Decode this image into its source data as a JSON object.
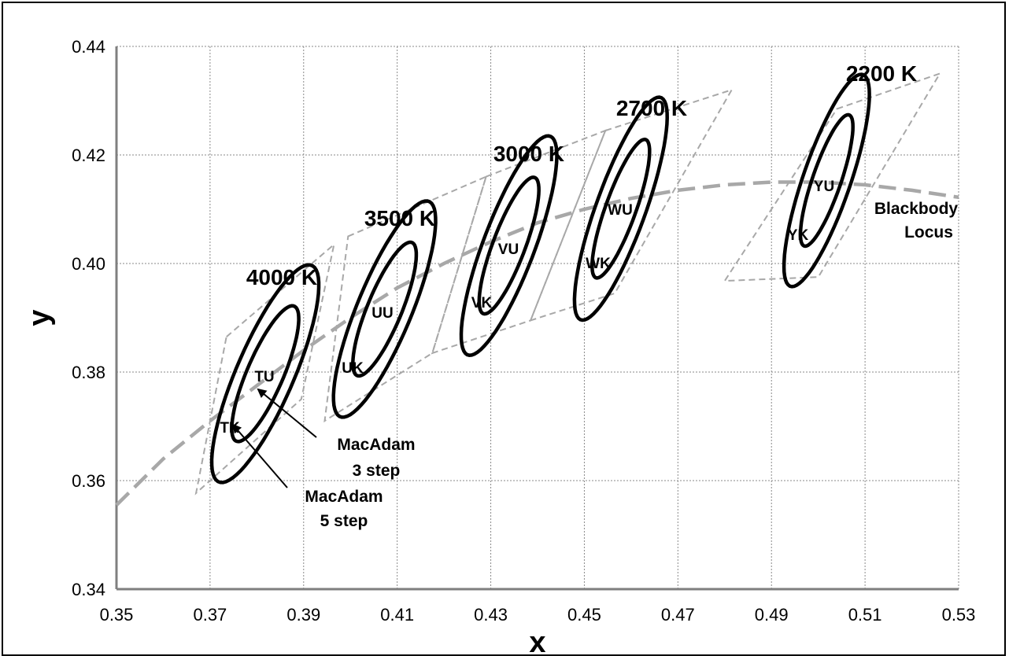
{
  "chart_data": {
    "type": "scatter",
    "title": "",
    "xlabel": "x",
    "ylabel": "y",
    "xlim": [
      0.35,
      0.53
    ],
    "ylim": [
      0.34,
      0.44
    ],
    "x_ticks": [
      "0.35",
      "0.37",
      "0.39",
      "0.41",
      "0.43",
      "0.45",
      "0.47",
      "0.49",
      "0.51",
      "0.53"
    ],
    "y_ticks": [
      "0.34",
      "0.36",
      "0.38",
      "0.40",
      "0.42",
      "0.44"
    ],
    "grid": true,
    "blackbody_locus": {
      "label": "Blackbody Locus",
      "label_lines": [
        "Blackbody",
        "Locus"
      ],
      "points": [
        [
          0.35,
          0.3555
        ],
        [
          0.36,
          0.364
        ],
        [
          0.37,
          0.371
        ],
        [
          0.38,
          0.3775
        ],
        [
          0.39,
          0.384
        ],
        [
          0.4,
          0.39
        ],
        [
          0.41,
          0.3955
        ],
        [
          0.42,
          0.4
        ],
        [
          0.43,
          0.404
        ],
        [
          0.44,
          0.4075
        ],
        [
          0.45,
          0.41
        ],
        [
          0.46,
          0.412
        ],
        [
          0.47,
          0.4135
        ],
        [
          0.48,
          0.4145
        ],
        [
          0.49,
          0.415
        ],
        [
          0.5,
          0.415
        ],
        [
          0.51,
          0.4145
        ],
        [
          0.52,
          0.4135
        ],
        [
          0.53,
          0.4122
        ]
      ]
    },
    "cct_groups": [
      {
        "label": "4000 K",
        "center": [
          0.3818,
          0.3797
        ],
        "inner": {
          "label": "TU",
          "a": 0.0139,
          "b": 0.0038,
          "angle_deg": 63
        },
        "outer": {
          "label": "TK",
          "a": 0.0223,
          "b": 0.006,
          "angle_deg": 63
        },
        "quad": [
          [
            0.3735,
            0.3865
          ],
          [
            0.3965,
            0.4035
          ],
          [
            0.3895,
            0.375
          ],
          [
            0.367,
            0.3577
          ]
        ]
      },
      {
        "label": "3500 K",
        "center": [
          0.4073,
          0.3916
        ],
        "inner": {
          "label": "UU",
          "a": 0.0136,
          "b": 0.0036,
          "angle_deg": 64
        },
        "outer": {
          "label": "UK",
          "a": 0.022,
          "b": 0.0057,
          "angle_deg": 64
        },
        "quad": [
          [
            0.3995,
            0.405
          ],
          [
            0.429,
            0.416
          ],
          [
            0.4175,
            0.3835
          ],
          [
            0.3945,
            0.371
          ]
        ]
      },
      {
        "label": "3000 K",
        "center": [
          0.4339,
          0.4033
        ],
        "inner": {
          "label": "VU",
          "a": 0.0137,
          "b": 0.0034,
          "angle_deg": 66
        },
        "outer": {
          "label": "VK",
          "a": 0.022,
          "b": 0.0054,
          "angle_deg": 66
        },
        "quad": [
          [
            0.429,
            0.416
          ],
          [
            0.4545,
            0.4245
          ],
          [
            0.4385,
            0.3895
          ],
          [
            0.4175,
            0.3835
          ]
        ]
      },
      {
        "label": "2700 K",
        "center": [
          0.4578,
          0.4101
        ],
        "inner": {
          "label": "WU",
          "a": 0.0138,
          "b": 0.0032,
          "angle_deg": 67
        },
        "outer": {
          "label": "WK",
          "a": 0.0222,
          "b": 0.0052,
          "angle_deg": 67
        },
        "quad": [
          [
            0.4545,
            0.4245
          ],
          [
            0.4815,
            0.432
          ],
          [
            0.4565,
            0.3945
          ],
          [
            0.4385,
            0.3895
          ]
        ]
      },
      {
        "label": "2200 K",
        "center": [
          0.5018,
          0.4153
        ],
        "inner": {
          "label": "YU",
          "a": 0.013,
          "b": 0.003,
          "angle_deg": 68
        },
        "outer": {
          "label": "YK",
          "a": 0.021,
          "b": 0.005,
          "angle_deg": 68
        },
        "quad": [
          [
            0.504,
            0.4285
          ],
          [
            0.526,
            0.435
          ],
          [
            0.5,
            0.3975
          ],
          [
            0.48,
            0.3968
          ]
        ]
      }
    ],
    "annotations": [
      {
        "label": "MacAdam 3 step",
        "lines": [
          "MacAdam",
          "3 step"
        ]
      },
      {
        "label": "MacAdam 5 step",
        "lines": [
          "MacAdam",
          "5 step"
        ]
      }
    ]
  }
}
